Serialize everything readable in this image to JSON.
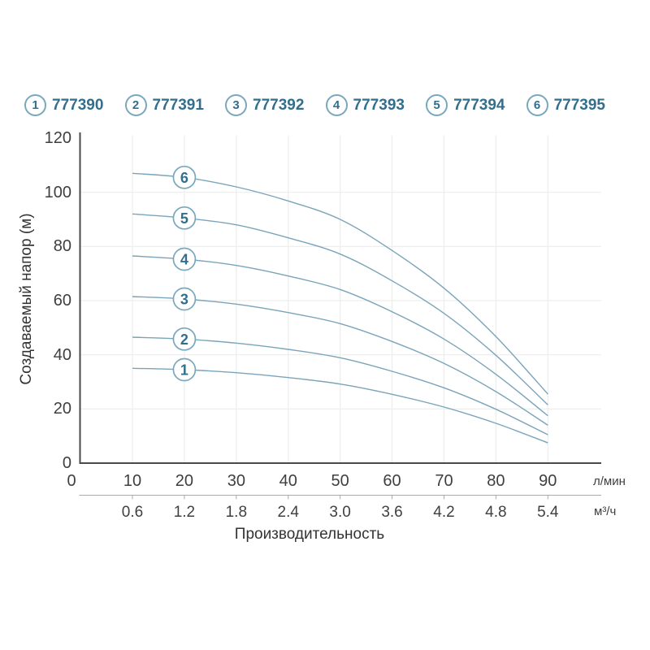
{
  "legend": {
    "items": [
      {
        "number": "1",
        "code": "777390"
      },
      {
        "number": "2",
        "code": "777391"
      },
      {
        "number": "3",
        "code": "777392"
      },
      {
        "number": "4",
        "code": "777393"
      },
      {
        "number": "5",
        "code": "777394"
      },
      {
        "number": "6",
        "code": "777395"
      }
    ]
  },
  "chart_data": {
    "type": "line",
    "xlabel": "Производительность",
    "ylabel": "Создаваемый напор (м)",
    "x_unit_primary": "л/мин",
    "x_unit_secondary": "м³/ч",
    "x_primary_ticks": [
      "0",
      "10",
      "20",
      "30",
      "40",
      "50",
      "60",
      "70",
      "80",
      "90"
    ],
    "x_secondary_ticks": [
      "0.6",
      "1.2",
      "1.8",
      "2.4",
      "3.0",
      "3.6",
      "4.2",
      "4.8",
      "5.4"
    ],
    "y_ticks": [
      "0",
      "20",
      "40",
      "60",
      "80",
      "100",
      "120"
    ],
    "xlim": [
      0,
      100.5
    ],
    "ylim": [
      0,
      120
    ],
    "grid": true,
    "x": [
      10,
      20,
      30,
      40,
      50,
      60,
      70,
      80,
      90
    ],
    "series": [
      {
        "name": "1",
        "code": "777390",
        "values": [
          35.0,
          34.5,
          33.4,
          31.6,
          29.2,
          25.4,
          20.7,
          14.7,
          7.5
        ]
      },
      {
        "name": "2",
        "code": "777391",
        "values": [
          46.5,
          45.8,
          44.3,
          42.0,
          38.9,
          33.9,
          27.8,
          19.9,
          10.5
        ]
      },
      {
        "name": "3",
        "code": "777392",
        "values": [
          61.5,
          60.6,
          58.7,
          55.6,
          51.5,
          44.9,
          36.8,
          26.4,
          14.0
        ]
      },
      {
        "name": "4",
        "code": "777393",
        "values": [
          76.5,
          75.3,
          73.0,
          69.1,
          64.1,
          55.9,
          45.8,
          32.8,
          17.5
        ]
      },
      {
        "name": "5",
        "code": "777394",
        "values": [
          92.0,
          90.5,
          88.0,
          83.2,
          77.2,
          67.3,
          55.3,
          39.8,
          21.5
        ]
      },
      {
        "name": "6",
        "code": "777395",
        "values": [
          107.0,
          105.5,
          102.0,
          96.8,
          90.0,
          78.5,
          64.6,
          46.7,
          25.5
        ]
      }
    ],
    "curve_label_x": 20,
    "colors": {
      "curve": "#7aa4ba",
      "grid": "#ededed",
      "axis": "#4a4a4a",
      "secondary_axis": "#aaaaaa",
      "label_text": "#326f8e",
      "label_circle_border": "#79a8bd"
    }
  }
}
